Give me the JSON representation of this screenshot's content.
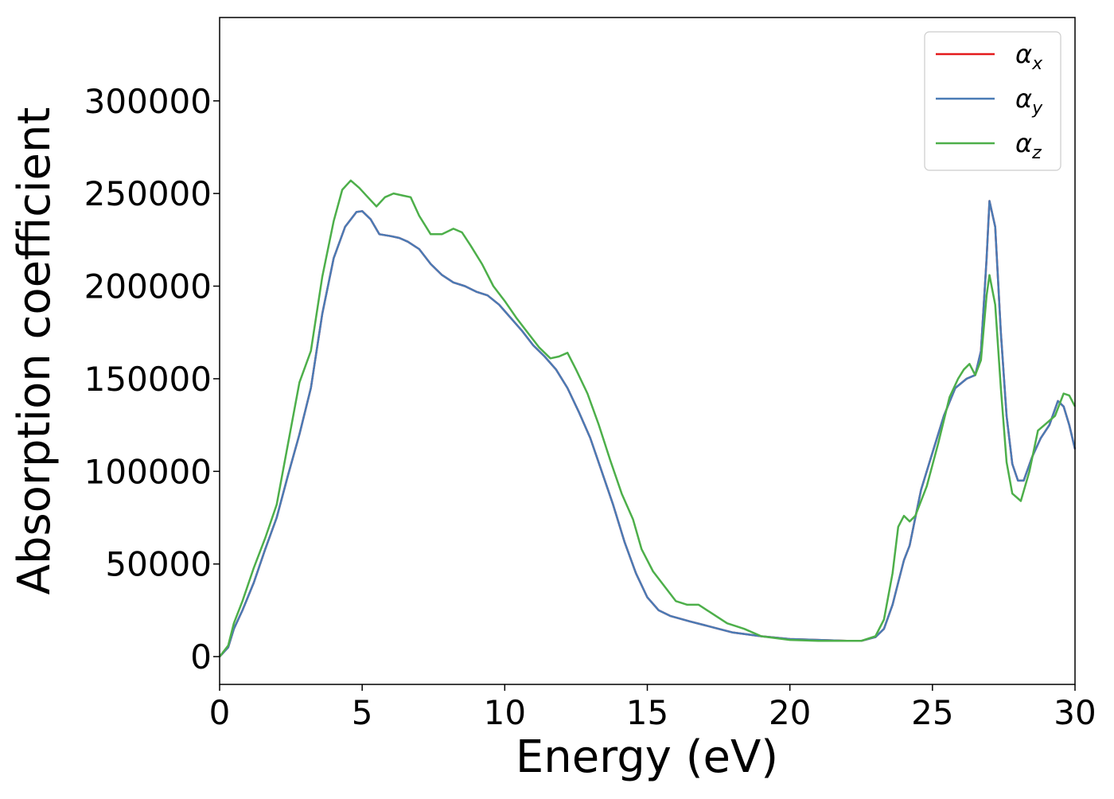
{
  "chart_data": {
    "type": "line",
    "title": "",
    "xlabel": "Energy (eV)",
    "ylabel": "Absorption coefficient",
    "xlim": [
      0,
      30
    ],
    "ylim": [
      -15000,
      345000
    ],
    "xticks": [
      0,
      5,
      10,
      15,
      20,
      25,
      30
    ],
    "xtick_labels": [
      "0",
      "5",
      "10",
      "15",
      "20",
      "25",
      "30"
    ],
    "yticks": [
      0,
      50000,
      100000,
      150000,
      200000,
      250000,
      300000
    ],
    "ytick_labels": [
      "0",
      "50000",
      "100000",
      "150000",
      "200000",
      "250000",
      "300000"
    ],
    "grid": false,
    "legend_position": "top-right",
    "series": [
      {
        "name": "αx",
        "name_base": "α",
        "name_sub": "x",
        "color": "#e41a1c",
        "x": [
          0,
          0.3,
          0.5,
          0.8,
          1.2,
          1.6,
          2.0,
          2.4,
          2.8,
          3.2,
          3.6,
          4.0,
          4.4,
          4.8,
          5.0,
          5.3,
          5.6,
          6.0,
          6.3,
          6.6,
          7.0,
          7.4,
          7.8,
          8.2,
          8.6,
          9.0,
          9.4,
          9.8,
          10.2,
          10.6,
          11.0,
          11.4,
          11.8,
          12.2,
          12.6,
          13.0,
          13.4,
          13.8,
          14.2,
          14.6,
          15.0,
          15.4,
          15.8,
          16.5,
          17.0,
          17.5,
          18.0,
          18.5,
          19.0,
          20.0,
          21.0,
          22.0,
          22.5,
          23.0,
          23.3,
          23.6,
          23.8,
          24.0,
          24.2,
          24.4,
          24.6,
          25.0,
          25.4,
          25.8,
          26.2,
          26.5,
          26.7,
          26.9,
          27.0,
          27.2,
          27.4,
          27.6,
          27.8,
          28.0,
          28.2,
          28.5,
          28.8,
          29.1,
          29.4,
          29.6,
          29.8,
          30.0
        ],
        "y": [
          0,
          5000,
          15000,
          25000,
          40000,
          58000,
          75000,
          98000,
          120000,
          145000,
          185000,
          215000,
          232000,
          240000,
          240500,
          236000,
          228000,
          227000,
          226000,
          224000,
          220000,
          212000,
          206000,
          202000,
          200000,
          197000,
          195000,
          190000,
          183000,
          176000,
          168000,
          162000,
          155000,
          145000,
          132000,
          118000,
          100000,
          82000,
          62000,
          45000,
          32000,
          25000,
          22000,
          19000,
          17000,
          15000,
          13000,
          12000,
          11000,
          9500,
          9000,
          8500,
          8500,
          10500,
          15000,
          28000,
          40000,
          52000,
          60000,
          75000,
          90000,
          110000,
          130000,
          145000,
          150000,
          152000,
          165000,
          215000,
          246000,
          232000,
          175000,
          130000,
          104000,
          95000,
          95000,
          108000,
          118000,
          125000,
          138000,
          135000,
          125000,
          112000
        ]
      },
      {
        "name": "αy",
        "name_base": "α",
        "name_sub": "y",
        "color": "#4a7bb5",
        "x": [
          0,
          0.3,
          0.5,
          0.8,
          1.2,
          1.6,
          2.0,
          2.4,
          2.8,
          3.2,
          3.6,
          4.0,
          4.4,
          4.8,
          5.0,
          5.3,
          5.6,
          6.0,
          6.3,
          6.6,
          7.0,
          7.4,
          7.8,
          8.2,
          8.6,
          9.0,
          9.4,
          9.8,
          10.2,
          10.6,
          11.0,
          11.4,
          11.8,
          12.2,
          12.6,
          13.0,
          13.4,
          13.8,
          14.2,
          14.6,
          15.0,
          15.4,
          15.8,
          16.5,
          17.0,
          17.5,
          18.0,
          18.5,
          19.0,
          20.0,
          21.0,
          22.0,
          22.5,
          23.0,
          23.3,
          23.6,
          23.8,
          24.0,
          24.2,
          24.4,
          24.6,
          25.0,
          25.4,
          25.8,
          26.2,
          26.5,
          26.7,
          26.9,
          27.0,
          27.2,
          27.4,
          27.6,
          27.8,
          28.0,
          28.2,
          28.5,
          28.8,
          29.1,
          29.4,
          29.6,
          29.8,
          30.0
        ],
        "y": [
          0,
          5000,
          15000,
          25000,
          40000,
          58000,
          75000,
          98000,
          120000,
          145000,
          185000,
          215000,
          232000,
          240000,
          240500,
          236000,
          228000,
          227000,
          226000,
          224000,
          220000,
          212000,
          206000,
          202000,
          200000,
          197000,
          195000,
          190000,
          183000,
          176000,
          168000,
          162000,
          155000,
          145000,
          132000,
          118000,
          100000,
          82000,
          62000,
          45000,
          32000,
          25000,
          22000,
          19000,
          17000,
          15000,
          13000,
          12000,
          11000,
          9500,
          9000,
          8500,
          8500,
          10500,
          15000,
          28000,
          40000,
          52000,
          60000,
          75000,
          90000,
          110000,
          130000,
          145000,
          150000,
          152000,
          165000,
          215000,
          246000,
          232000,
          175000,
          130000,
          104000,
          95000,
          95000,
          108000,
          118000,
          125000,
          138000,
          135000,
          125000,
          112000
        ]
      },
      {
        "name": "αz",
        "name_base": "α",
        "name_sub": "z",
        "color": "#4daf4a",
        "x": [
          0,
          0.3,
          0.5,
          0.8,
          1.2,
          1.6,
          2.0,
          2.4,
          2.8,
          3.2,
          3.6,
          4.0,
          4.3,
          4.6,
          4.9,
          5.2,
          5.5,
          5.8,
          6.1,
          6.4,
          6.7,
          7.0,
          7.4,
          7.8,
          8.2,
          8.5,
          8.8,
          9.2,
          9.6,
          10.0,
          10.4,
          10.8,
          11.2,
          11.6,
          11.9,
          12.2,
          12.5,
          12.9,
          13.3,
          13.7,
          14.1,
          14.5,
          14.8,
          15.2,
          15.6,
          16.0,
          16.4,
          16.8,
          17.2,
          17.8,
          18.4,
          19.0,
          20.0,
          21.0,
          22.0,
          22.5,
          23.0,
          23.3,
          23.6,
          23.8,
          24.0,
          24.2,
          24.4,
          24.8,
          25.2,
          25.6,
          25.9,
          26.1,
          26.3,
          26.5,
          26.7,
          26.9,
          27.0,
          27.2,
          27.4,
          27.6,
          27.8,
          28.1,
          28.4,
          28.7,
          29.0,
          29.3,
          29.6,
          29.8,
          30.0
        ],
        "y": [
          0,
          6000,
          18000,
          30000,
          48000,
          64000,
          82000,
          115000,
          148000,
          165000,
          205000,
          235000,
          252000,
          257000,
          253000,
          248000,
          243000,
          248000,
          250000,
          249000,
          248000,
          238000,
          228000,
          228000,
          231000,
          229000,
          222000,
          212000,
          200000,
          192000,
          183000,
          175000,
          167000,
          161000,
          162000,
          164000,
          155000,
          142000,
          125000,
          106000,
          88000,
          74000,
          58000,
          46000,
          38000,
          30000,
          28000,
          28000,
          24000,
          18000,
          15000,
          11000,
          9000,
          8500,
          8500,
          8500,
          11000,
          20000,
          45000,
          70000,
          76000,
          73000,
          76000,
          92000,
          115000,
          140000,
          150000,
          155000,
          158000,
          152000,
          160000,
          195000,
          206000,
          190000,
          145000,
          105000,
          88000,
          84000,
          100000,
          122000,
          126000,
          130000,
          142000,
          141000,
          135000
        ]
      }
    ]
  }
}
